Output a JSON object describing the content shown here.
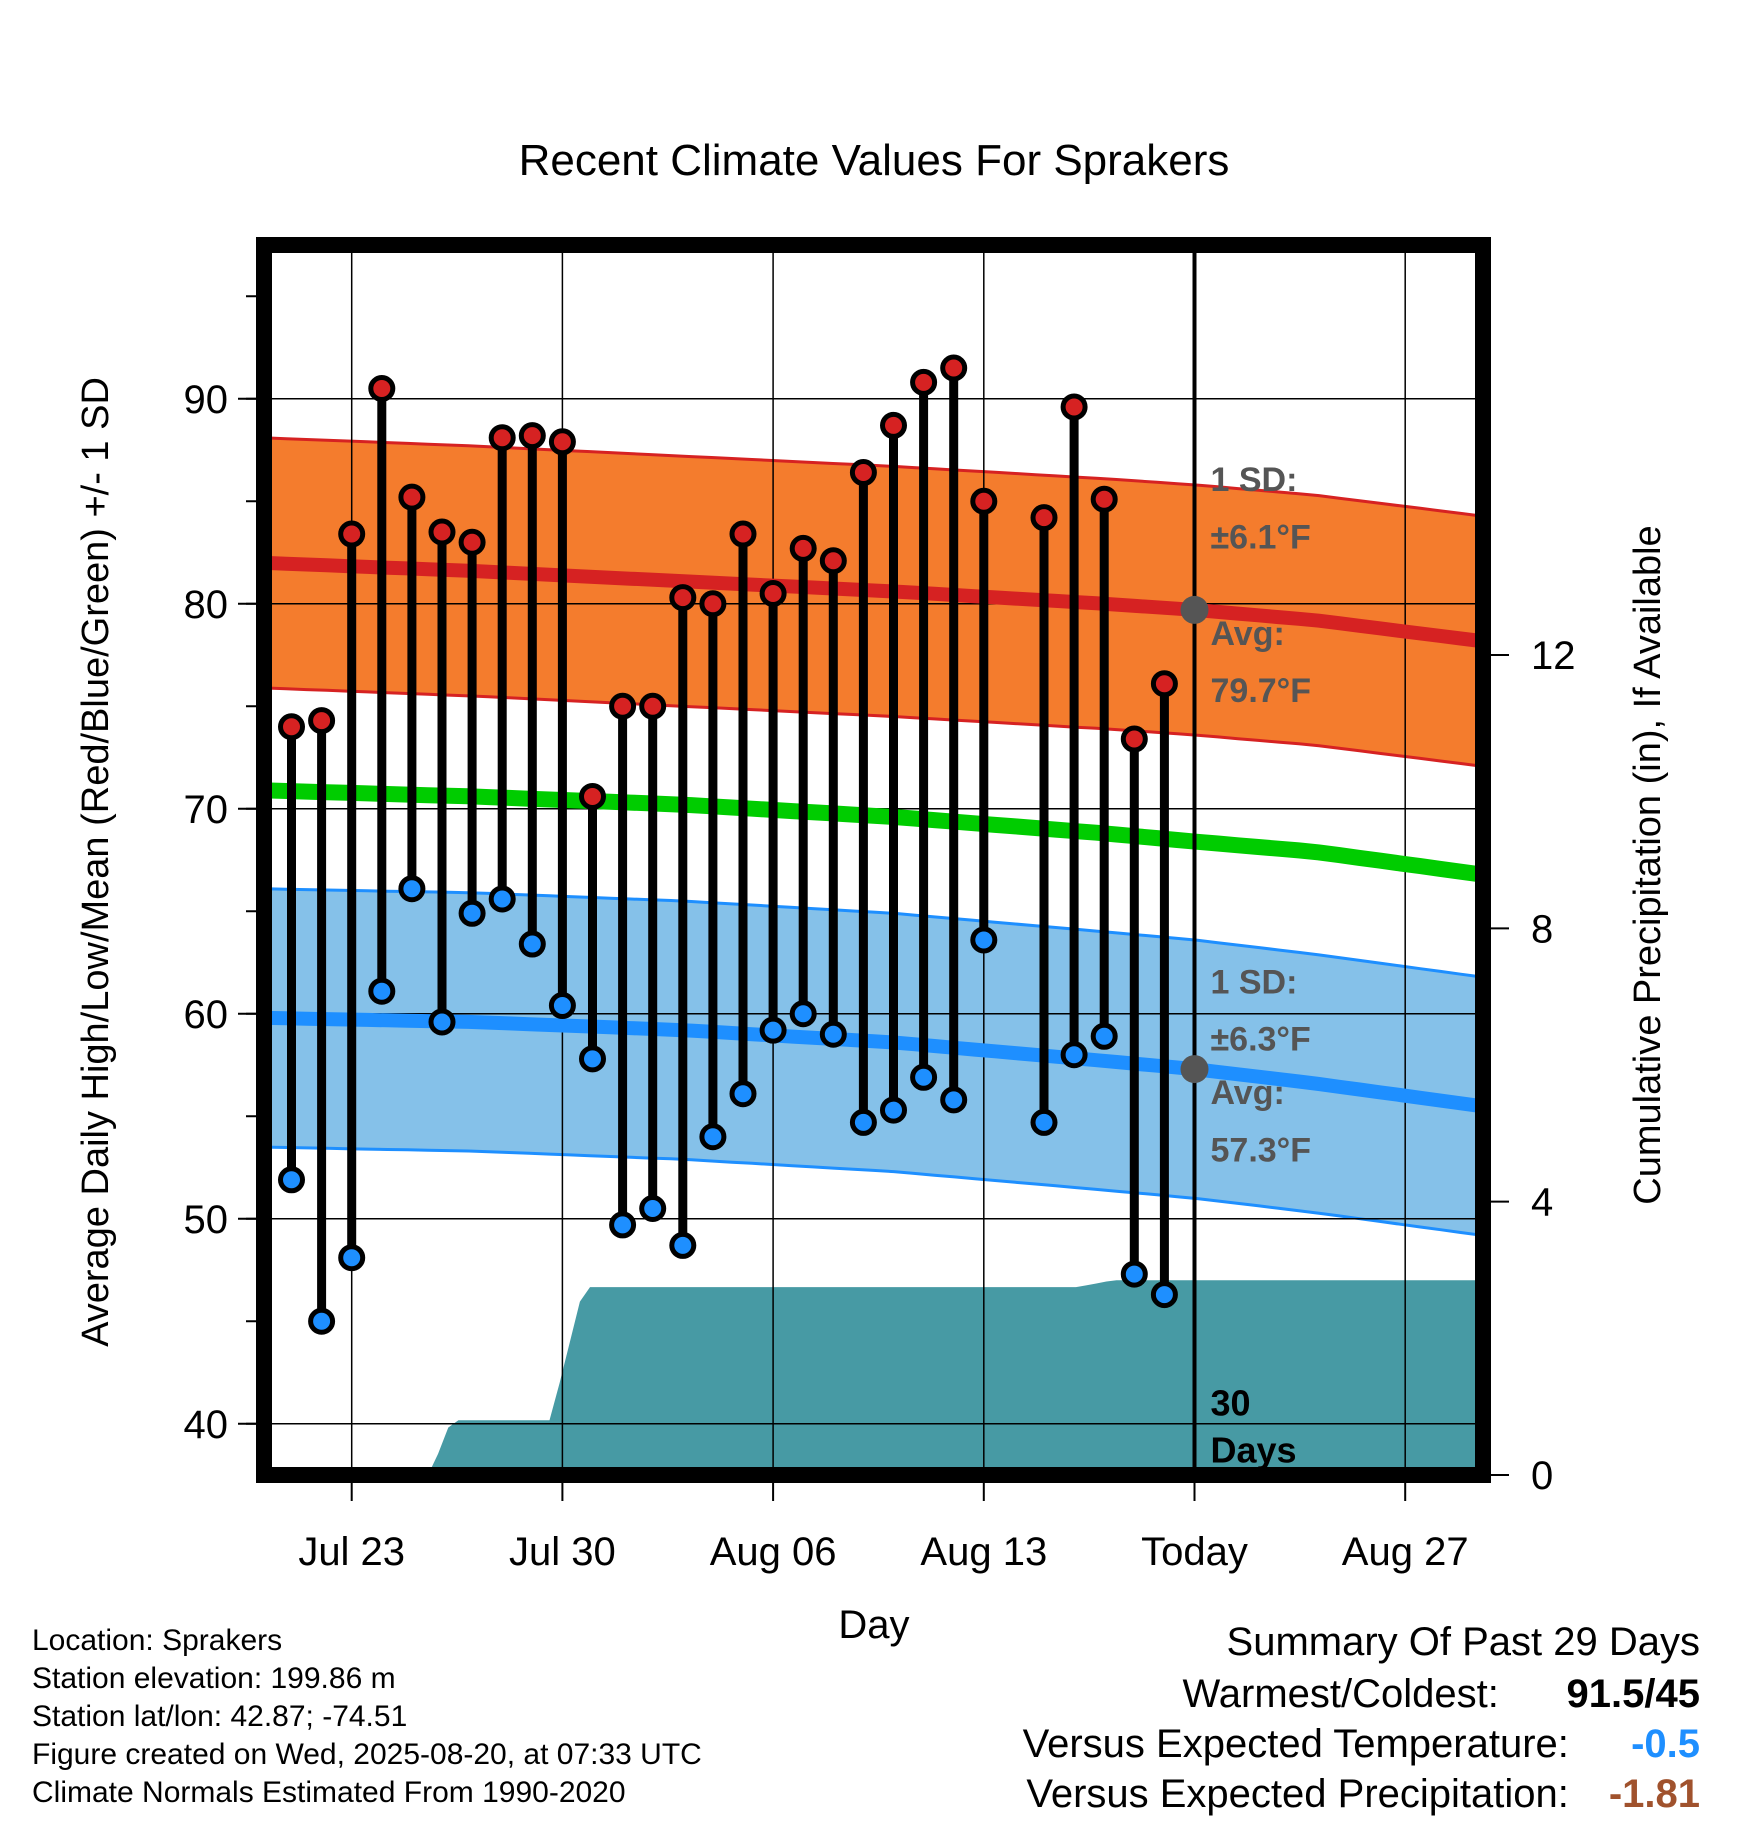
{
  "chart_data": {
    "type": "line",
    "title": "Recent Climate Values For Sprakers",
    "xlabel": "Day",
    "ylabel": "Average Daily High/Low/Mean (Red/Blue/Green) +/- 1 SD",
    "y2label": "Cumulative Precipitation (in), If Available",
    "ylim": [
      37.5,
      97.5
    ],
    "y2lim": [
      0,
      18
    ],
    "y_ticks": [
      40,
      50,
      60,
      70,
      80,
      90
    ],
    "y2_ticks": [
      0,
      4,
      8,
      12
    ],
    "x_tick_labels": [
      {
        "day": 3,
        "label": "Jul 23"
      },
      {
        "day": 10,
        "label": "Jul 30"
      },
      {
        "day": 17,
        "label": "Aug 06"
      },
      {
        "day": 24,
        "label": "Aug 13"
      },
      {
        "day": 31,
        "label": "Today"
      },
      {
        "day": 38,
        "label": "Aug 27"
      }
    ],
    "x_day_offset_note": "",
    "grid": true,
    "observed_highs": [
      74.0,
      74.3,
      83.4,
      90.5,
      85.2,
      83.5,
      83.0,
      88.1,
      88.2,
      87.9,
      70.6,
      75.0,
      75.0,
      80.3,
      80.0,
      83.4,
      80.5,
      82.7,
      82.1,
      86.4,
      88.7,
      90.8,
      91.5,
      85.0,
      null,
      84.2,
      89.6,
      85.1,
      73.4,
      76.1
    ],
    "observed_lows": [
      51.9,
      45.0,
      48.1,
      61.1,
      66.1,
      59.6,
      64.9,
      65.6,
      63.4,
      60.4,
      57.8,
      49.7,
      50.5,
      48.7,
      54.0,
      56.1,
      59.2,
      60.0,
      59.0,
      54.7,
      55.3,
      56.9,
      55.8,
      63.6,
      null,
      54.7,
      58.0,
      58.9,
      47.3,
      46.3
    ],
    "normal_high": {
      "days": [
        0,
        7,
        14,
        21,
        28,
        31,
        35,
        41.5
      ],
      "avg": [
        82.0,
        81.6,
        81.1,
        80.6,
        80.0,
        79.7,
        79.2,
        78.0
      ],
      "sd": 6.1
    },
    "normal_low": {
      "days": [
        0,
        7,
        14,
        21,
        28,
        31,
        35,
        41.5
      ],
      "avg": [
        59.8,
        59.6,
        59.2,
        58.6,
        57.7,
        57.3,
        56.6,
        55.3
      ],
      "sd": 6.3
    },
    "normal_mean": {
      "days": [
        0,
        7,
        14,
        21,
        28,
        31,
        35,
        41.5
      ],
      "avg": [
        70.9,
        70.6,
        70.2,
        69.6,
        68.8,
        68.4,
        67.9,
        66.6
      ]
    },
    "precipitation": {
      "days": [
        0,
        5.6,
        6.3,
        9.6,
        10.7,
        27.1,
        28.3,
        41.5
      ],
      "values": [
        0,
        0,
        0.8,
        0.8,
        2.75,
        2.75,
        2.85,
        2.85
      ]
    },
    "annotations": {
      "high_sd": "1 SD:",
      "high_sd_value": "±6.1°F",
      "high_avg": "Avg:",
      "high_avg_value": "79.7°F",
      "low_sd": "1 SD:",
      "low_sd_value": "±6.3°F",
      "low_avg": "Avg:",
      "low_avg_value": "57.3°F",
      "days_label_1": "30",
      "days_label_2": "Days"
    },
    "colors": {
      "high_band": "#f47c2d",
      "high_line": "#d62222",
      "low_band": "#85c1e9",
      "low_line": "#1e8fff",
      "mean_line": "#00cc00",
      "precip": "#479aa4",
      "annotation": "#555555"
    }
  },
  "info": {
    "location": "Location: Sprakers",
    "elevation": "Station elevation: 199.86 m",
    "latlon": "Station lat/lon: 42.87; -74.51",
    "created": "Figure created on Wed, 2025-08-20, at 07:33 UTC",
    "normals": "Climate Normals Estimated From 1990-2020"
  },
  "summary": {
    "title": "Summary Of Past 29 Days",
    "warm_cold_label": "Warmest/Coldest:",
    "warm_cold_value": "91.5/45",
    "temp_label": "Versus Expected Temperature:",
    "temp_value": "-0.5",
    "temp_color": "#1e8fff",
    "precip_label": "Versus Expected Precipitation:",
    "precip_value": "-1.81",
    "precip_color": "#a0522d"
  }
}
